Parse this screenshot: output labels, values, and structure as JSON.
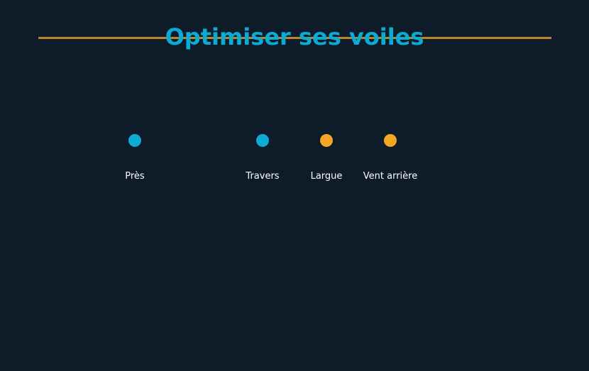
{
  "title": "Optimiser ses voiles",
  "colors": {
    "background": "#0e1b29",
    "title": "#0aacd3",
    "rule": "#b8862b",
    "label": "#ffffff"
  },
  "points": [
    {
      "label": "Près",
      "color": "#0aacd3"
    },
    {
      "label": "Travers",
      "color": "#0aacd3"
    },
    {
      "label": "Largue",
      "color": "#f5a623"
    },
    {
      "label": "Vent arrière",
      "color": "#f5a623"
    }
  ]
}
